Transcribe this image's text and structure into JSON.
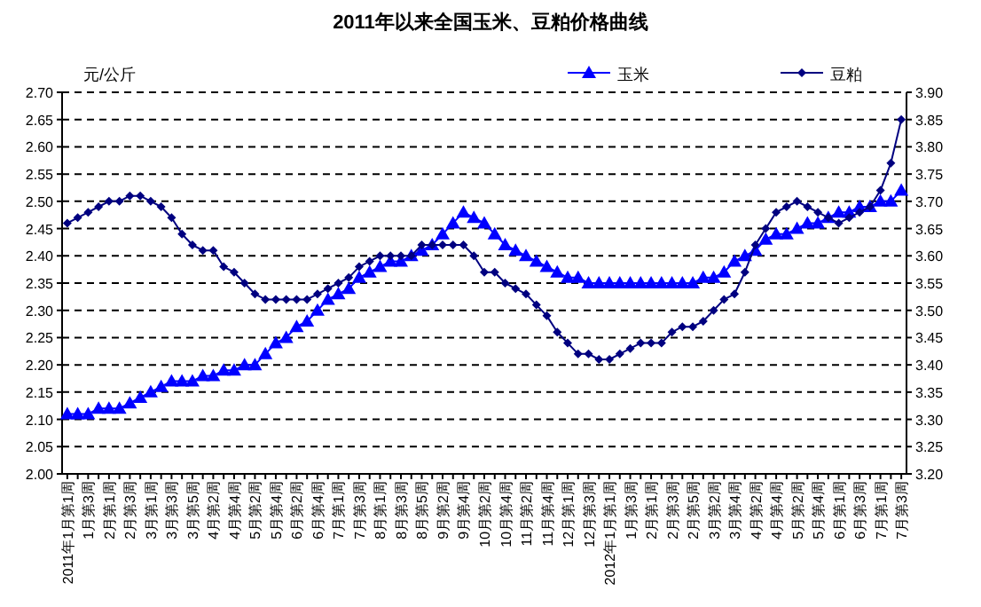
{
  "chart_data": {
    "type": "line",
    "title": "2011年以来全国玉米、豆粕价格曲线",
    "ylabel": "元/公斤",
    "categories": [
      "2011年1月第1周",
      null,
      "1月第3周",
      null,
      "2月第1周",
      null,
      "2月第3周",
      null,
      "3月第1周",
      null,
      "3月第3周",
      null,
      "3月第5周",
      null,
      "4月第2周",
      null,
      "4月第4周",
      null,
      "5月第2周",
      null,
      "5月第4周",
      null,
      "6月第2周",
      null,
      "6月第4周",
      null,
      "7月第1周",
      null,
      "7月第3周",
      null,
      "8月第1周",
      null,
      "8月第3周",
      null,
      "8月第5周",
      null,
      "9月第2周",
      null,
      "9月第4周",
      null,
      "10月第2周",
      null,
      "10月第4周",
      null,
      "11月第2周",
      null,
      "11月第4周",
      null,
      "12月第1周",
      null,
      "12月第3周",
      null,
      "2012年1月第1周",
      null,
      "1月第3周",
      null,
      "2月第1周",
      null,
      "2月第3周",
      null,
      "2月第5周",
      null,
      "3月第2周",
      null,
      "3月第4周",
      null,
      "4月第2周",
      null,
      "4月第4周",
      null,
      "5月第2周",
      null,
      "5月第4周",
      null,
      "6月第1周",
      null,
      "6月第3周",
      null,
      "7月第1周",
      null,
      "7月第3周"
    ],
    "series": [
      {
        "name": "玉米",
        "color": "#0000ff",
        "marker": "triangle",
        "values": [
          2.11,
          2.11,
          2.11,
          2.12,
          2.12,
          2.12,
          2.13,
          2.14,
          2.15,
          2.16,
          2.17,
          2.17,
          2.17,
          2.18,
          2.18,
          2.19,
          2.19,
          2.2,
          2.2,
          2.22,
          2.24,
          2.25,
          2.27,
          2.28,
          2.3,
          2.32,
          2.33,
          2.34,
          2.36,
          2.37,
          2.38,
          2.39,
          2.39,
          2.4,
          2.41,
          2.42,
          2.44,
          2.46,
          2.48,
          2.47,
          2.46,
          2.44,
          2.42,
          2.41,
          2.4,
          2.39,
          2.38,
          2.37,
          2.36,
          2.36,
          2.35,
          2.35,
          2.35,
          2.35,
          2.35,
          2.35,
          2.35,
          2.35,
          2.35,
          2.35,
          2.35,
          2.36,
          2.36,
          2.37,
          2.39,
          2.4,
          2.41,
          2.43,
          2.44,
          2.44,
          2.45,
          2.46,
          2.46,
          2.47,
          2.48,
          2.48,
          2.49,
          2.49,
          2.5,
          2.5,
          2.52
        ]
      },
      {
        "name": "豆粕",
        "color": "#000080",
        "marker": "diamond",
        "axis": "y2",
        "values": [
          3.66,
          3.67,
          3.68,
          3.69,
          3.7,
          3.7,
          3.71,
          3.71,
          3.7,
          3.69,
          3.67,
          3.64,
          3.62,
          3.61,
          3.61,
          3.58,
          3.57,
          3.55,
          3.53,
          3.52,
          3.52,
          3.52,
          3.52,
          3.52,
          3.53,
          3.54,
          3.55,
          3.56,
          3.58,
          3.59,
          3.6,
          3.6,
          3.6,
          3.6,
          3.62,
          3.62,
          3.62,
          3.62,
          3.62,
          3.6,
          3.57,
          3.57,
          3.55,
          3.54,
          3.53,
          3.51,
          3.49,
          3.46,
          3.44,
          3.42,
          3.42,
          3.41,
          3.41,
          3.42,
          3.43,
          3.44,
          3.44,
          3.44,
          3.46,
          3.47,
          3.47,
          3.48,
          3.5,
          3.52,
          3.53,
          3.57,
          3.62,
          3.65,
          3.68,
          3.69,
          3.7,
          3.69,
          3.68,
          3.67,
          3.66,
          3.67,
          3.68,
          3.69,
          3.72,
          3.77,
          3.85
        ]
      }
    ],
    "ylim": [
      2.0,
      2.7
    ],
    "yticks": [
      {
        "value": 2.0,
        "label": "2.00"
      },
      {
        "value": 2.05,
        "label": "2.05"
      },
      {
        "value": 2.1,
        "label": "2.10"
      },
      {
        "value": 2.15,
        "label": "2.15"
      },
      {
        "value": 2.2,
        "label": "2.20"
      },
      {
        "value": 2.25,
        "label": "2.25"
      },
      {
        "value": 2.3,
        "label": "2.30"
      },
      {
        "value": 2.35,
        "label": "2.35"
      },
      {
        "value": 2.4,
        "label": "2.40"
      },
      {
        "value": 2.45,
        "label": "2.45"
      },
      {
        "value": 2.5,
        "label": "2.50"
      },
      {
        "value": 2.55,
        "label": "2.55"
      },
      {
        "value": 2.6,
        "label": "2.60"
      },
      {
        "value": 2.65,
        "label": "2.65"
      },
      {
        "value": 2.7,
        "label": "2.70"
      }
    ],
    "y2lim": [
      3.2,
      3.9
    ],
    "y2ticks": [
      {
        "value": 3.2,
        "label": "3.20"
      },
      {
        "value": 3.25,
        "label": "3.25"
      },
      {
        "value": 3.3,
        "label": "3.30"
      },
      {
        "value": 3.35,
        "label": "3.35"
      },
      {
        "value": 3.4,
        "label": "3.40"
      },
      {
        "value": 3.45,
        "label": "3.45"
      },
      {
        "value": 3.5,
        "label": "3.50"
      },
      {
        "value": 3.55,
        "label": "3.55"
      },
      {
        "value": 3.6,
        "label": "3.60"
      },
      {
        "value": 3.65,
        "label": "3.65"
      },
      {
        "value": 3.7,
        "label": "3.70"
      },
      {
        "value": 3.75,
        "label": "3.75"
      },
      {
        "value": 3.8,
        "label": "3.80"
      },
      {
        "value": 3.85,
        "label": "3.85"
      },
      {
        "value": 3.9,
        "label": "3.90"
      }
    ],
    "grid": "y",
    "line_style": "solid",
    "legend": "top right"
  }
}
